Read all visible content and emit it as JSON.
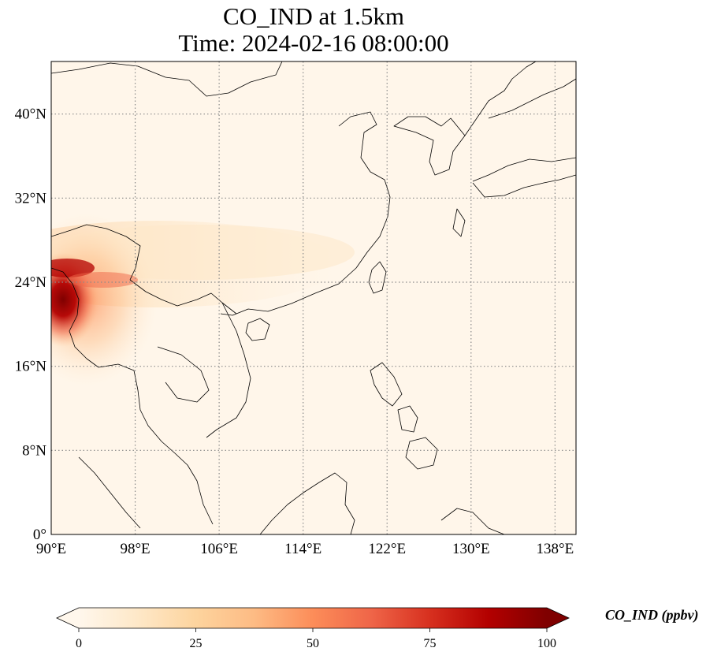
{
  "title": {
    "line1": "CO_IND at 1.5km",
    "line2": "Time: 2024-02-16 08:00:00"
  },
  "map": {
    "lon_range": [
      90,
      140
    ],
    "lat_range": [
      0,
      45
    ],
    "lon_ticks": [
      {
        "value": 90,
        "label": "90°E"
      },
      {
        "value": 98,
        "label": "98°E"
      },
      {
        "value": 106,
        "label": "106°E"
      },
      {
        "value": 114,
        "label": "114°E"
      },
      {
        "value": 122,
        "label": "122°E"
      },
      {
        "value": 130,
        "label": "130°E"
      },
      {
        "value": 138,
        "label": "138°E"
      }
    ],
    "lat_ticks": [
      {
        "value": 0,
        "label": "0°"
      },
      {
        "value": 8,
        "label": "8°N"
      },
      {
        "value": 16,
        "label": "16°N"
      },
      {
        "value": 24,
        "label": "24°N"
      },
      {
        "value": 32,
        "label": "32°N"
      },
      {
        "value": 40,
        "label": "40°N"
      }
    ],
    "gridlines": true,
    "colormap": "OrRd",
    "background_color": "#fff6ea"
  },
  "colorbar": {
    "label": "CO_IND (ppbv)",
    "min": 0,
    "max": 100,
    "extend": "both",
    "ticks": [
      {
        "value": 0,
        "label": "0"
      },
      {
        "value": 25,
        "label": "25"
      },
      {
        "value": 50,
        "label": "50"
      },
      {
        "value": 75,
        "label": "75"
      },
      {
        "value": 100,
        "label": "100"
      }
    ],
    "colors": [
      "#fff7ec",
      "#fee8c8",
      "#fdd49e",
      "#fdbb84",
      "#fc8d59",
      "#ef6548",
      "#d7301f",
      "#b30000",
      "#7f0000"
    ]
  }
}
